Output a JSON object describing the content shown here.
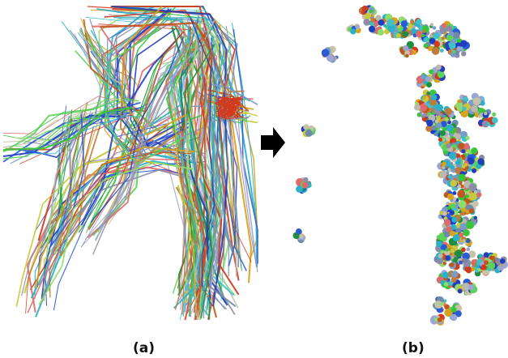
{
  "captions": {
    "left": "(a)",
    "right": "(b)"
  },
  "palette": [
    "#1f3fbf",
    "#2a5ad6",
    "#3ac43a",
    "#5bd35b",
    "#8fdc6a",
    "#b9b9b0",
    "#c8c2a8",
    "#8c8ca8",
    "#9aa6d4",
    "#d23a1e",
    "#c0581e",
    "#d7a21e",
    "#c8c83a",
    "#40c0c8",
    "#2ab0c8",
    "#7a9ac8",
    "#6e8aa8",
    "#e06a6a",
    "#c07a3a",
    "#1f8f3f"
  ],
  "arrow_color": "#000000"
}
